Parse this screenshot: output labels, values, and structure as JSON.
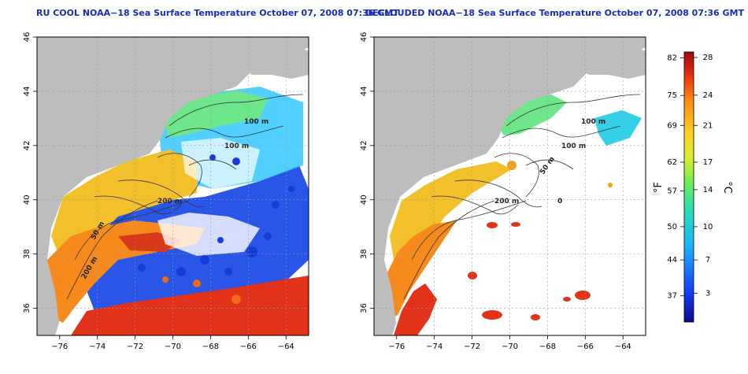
{
  "colors": {
    "land": "#bdbdbd",
    "ocean_empty": "#ffffff",
    "title": "#1a2bb8",
    "axis": "#000000",
    "grid": "#9a9a9a",
    "contour": "#333333"
  },
  "panels": [
    {
      "title": "RU COOL NOAA−18 Sea Surface Temperature October 07, 2008 07:36 GMT",
      "contour_labels": [
        "100 m",
        "100 m",
        "200 m",
        "50 m",
        "200 m"
      ]
    },
    {
      "title": "DECLOUDED NOAA−18 Sea Surface Temperature October 07, 2008 07:36 GMT",
      "contour_labels": [
        "100 m",
        "100 m",
        "50 m",
        "200 m",
        "0"
      ]
    }
  ],
  "axes": {
    "lon_ticks": [
      "−76",
      "−74",
      "−72",
      "−70",
      "−68",
      "−66",
      "−64"
    ],
    "lat_ticks": [
      "36",
      "38",
      "40",
      "42",
      "44",
      "46"
    ],
    "lon_range": [
      -77.2,
      -62.8
    ],
    "lat_range": [
      35.0,
      46.0
    ]
  },
  "colorbar": {
    "unit_f": "°F",
    "unit_c": "°C",
    "f_ticks": [
      "82",
      "75",
      "69",
      "62",
      "57",
      "50",
      "44",
      "37"
    ],
    "c_ticks": [
      "28",
      "24",
      "21",
      "17",
      "14",
      "10",
      "7",
      "3"
    ]
  }
}
